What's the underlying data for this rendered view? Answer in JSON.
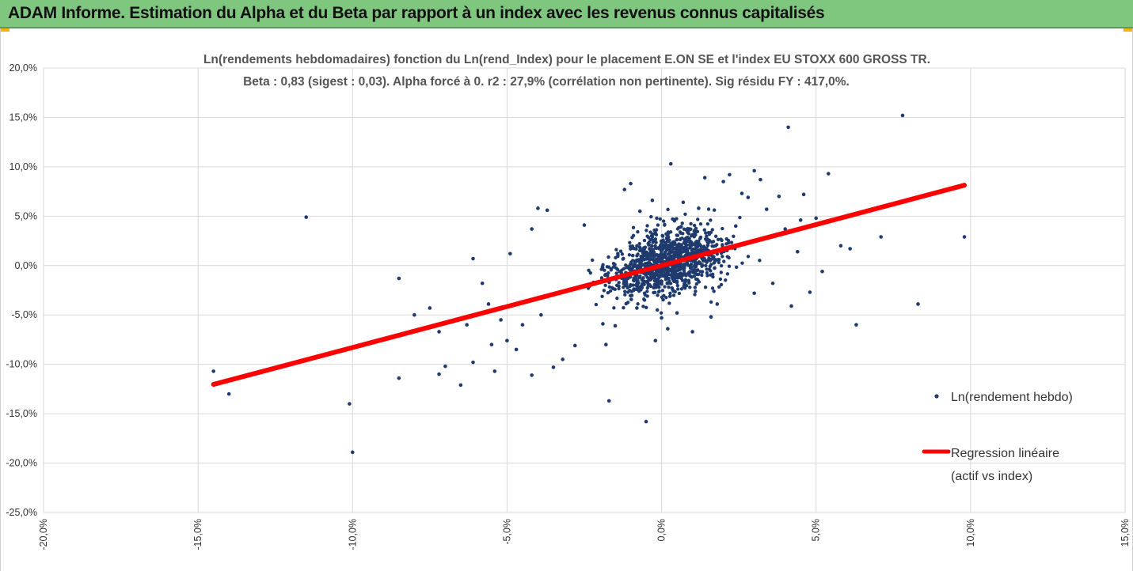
{
  "header": {
    "title": "ADAM Informe. Estimation du Alpha et du Beta par rapport à un index avec les revenus connus capitalisés"
  },
  "colors": {
    "banner": "#7fc67e",
    "accent": "#f2b705",
    "points": "#1f3b6e",
    "regression": "#ff0000",
    "grid": "#d9d9d9"
  },
  "chart_data": {
    "type": "scatter",
    "title": "Ln(rendements hebdomadaires) fonction du Ln(rend_Index) pour le placement E.ON SE et l'index EU STOXX 600 GROSS TR.",
    "subtitle": "Beta : 0,83 (sigest : 0,03).  Alpha forcé à 0. r2 : 27,9% (corrélation non pertinente). Sig résidu FY : 417,0%.",
    "xlim": [
      -0.2,
      0.15
    ],
    "ylim": [
      -0.25,
      0.2
    ],
    "x_ticks": [
      "-20,0%",
      "-15,0%",
      "-10,0%",
      "-5,0%",
      "0,0%",
      "5,0%",
      "10,0%",
      "15,0%"
    ],
    "y_ticks": [
      "20,0%",
      "15,0%",
      "10,0%",
      "5,0%",
      "0,0%",
      "-5,0%",
      "-10,0%",
      "-15,0%",
      "-20,0%",
      "-25,0%"
    ],
    "grid": true,
    "legend_position": "right",
    "series": [
      {
        "name": "Ln(rendement hebdo)",
        "type": "scatter",
        "points": [
          [
            -0.145,
            -0.107
          ],
          [
            -0.14,
            -0.13
          ],
          [
            -0.115,
            0.049
          ],
          [
            -0.101,
            -0.14
          ],
          [
            -0.1,
            -0.189
          ],
          [
            -0.085,
            -0.013
          ],
          [
            -0.085,
            -0.114
          ],
          [
            -0.08,
            -0.05
          ],
          [
            -0.075,
            -0.043
          ],
          [
            -0.072,
            -0.11
          ],
          [
            -0.072,
            -0.067
          ],
          [
            -0.07,
            -0.102
          ],
          [
            -0.065,
            -0.121
          ],
          [
            -0.063,
            -0.06
          ],
          [
            -0.061,
            0.007
          ],
          [
            -0.061,
            -0.098
          ],
          [
            -0.058,
            -0.018
          ],
          [
            -0.056,
            -0.039
          ],
          [
            -0.055,
            -0.08
          ],
          [
            -0.054,
            -0.107
          ],
          [
            -0.052,
            -0.055
          ],
          [
            -0.05,
            -0.076
          ],
          [
            -0.049,
            0.012
          ],
          [
            -0.047,
            -0.085
          ],
          [
            -0.045,
            -0.06
          ],
          [
            -0.042,
            -0.111
          ],
          [
            -0.042,
            0.037
          ],
          [
            -0.04,
            0.058
          ],
          [
            -0.039,
            -0.05
          ],
          [
            -0.037,
            0.056
          ],
          [
            -0.035,
            -0.103
          ],
          [
            -0.032,
            -0.095
          ],
          [
            -0.028,
            -0.081
          ],
          [
            -0.025,
            0.041
          ],
          [
            -0.022,
            -0.017
          ],
          [
            -0.019,
            -0.059
          ],
          [
            -0.018,
            -0.08
          ],
          [
            -0.017,
            -0.137
          ],
          [
            -0.015,
            -0.061
          ],
          [
            -0.012,
            0.077
          ],
          [
            -0.01,
            0.083
          ],
          [
            -0.008,
            -0.043
          ],
          [
            -0.007,
            0.055
          ],
          [
            -0.005,
            -0.158
          ],
          [
            -0.003,
            0.066
          ],
          [
            -0.002,
            -0.076
          ],
          [
            0.0,
            -0.053
          ],
          [
            0.002,
            -0.064
          ],
          [
            0.003,
            0.103
          ],
          [
            0.005,
            -0.048
          ],
          [
            0.007,
            0.064
          ],
          [
            0.009,
            0.037
          ],
          [
            0.01,
            -0.067
          ],
          [
            0.012,
            0.058
          ],
          [
            0.014,
            0.089
          ],
          [
            0.016,
            -0.052
          ],
          [
            0.018,
            -0.039
          ],
          [
            0.02,
            0.085
          ],
          [
            0.022,
            0.092
          ],
          [
            0.024,
            0.04
          ],
          [
            0.026,
            0.073
          ],
          [
            0.028,
            0.069
          ],
          [
            0.03,
            0.096
          ],
          [
            0.03,
            -0.028
          ],
          [
            0.032,
            0.087
          ],
          [
            0.034,
            0.057
          ],
          [
            0.036,
            -0.018
          ],
          [
            0.038,
            0.07
          ],
          [
            0.04,
            0.037
          ],
          [
            0.041,
            0.14
          ],
          [
            0.042,
            -0.041
          ],
          [
            0.044,
            0.014
          ],
          [
            0.045,
            0.046
          ],
          [
            0.046,
            0.072
          ],
          [
            0.048,
            -0.027
          ],
          [
            0.05,
            0.048
          ],
          [
            0.052,
            -0.006
          ],
          [
            0.054,
            0.093
          ],
          [
            0.058,
            0.02
          ],
          [
            0.061,
            0.017
          ],
          [
            0.063,
            -0.06
          ],
          [
            0.071,
            0.029
          ],
          [
            0.078,
            0.152
          ],
          [
            0.083,
            -0.039
          ],
          [
            0.098,
            0.029
          ]
        ]
      },
      {
        "name": "Regression linéaire (actif vs index)",
        "type": "line",
        "slope": 0.83,
        "x_range": [
          -0.145,
          0.098
        ]
      }
    ]
  },
  "legend": {
    "scatter_label": "Ln(rendement hebdo)",
    "line_label_1": "Regression linéaire",
    "line_label_2": "(actif vs index)"
  }
}
